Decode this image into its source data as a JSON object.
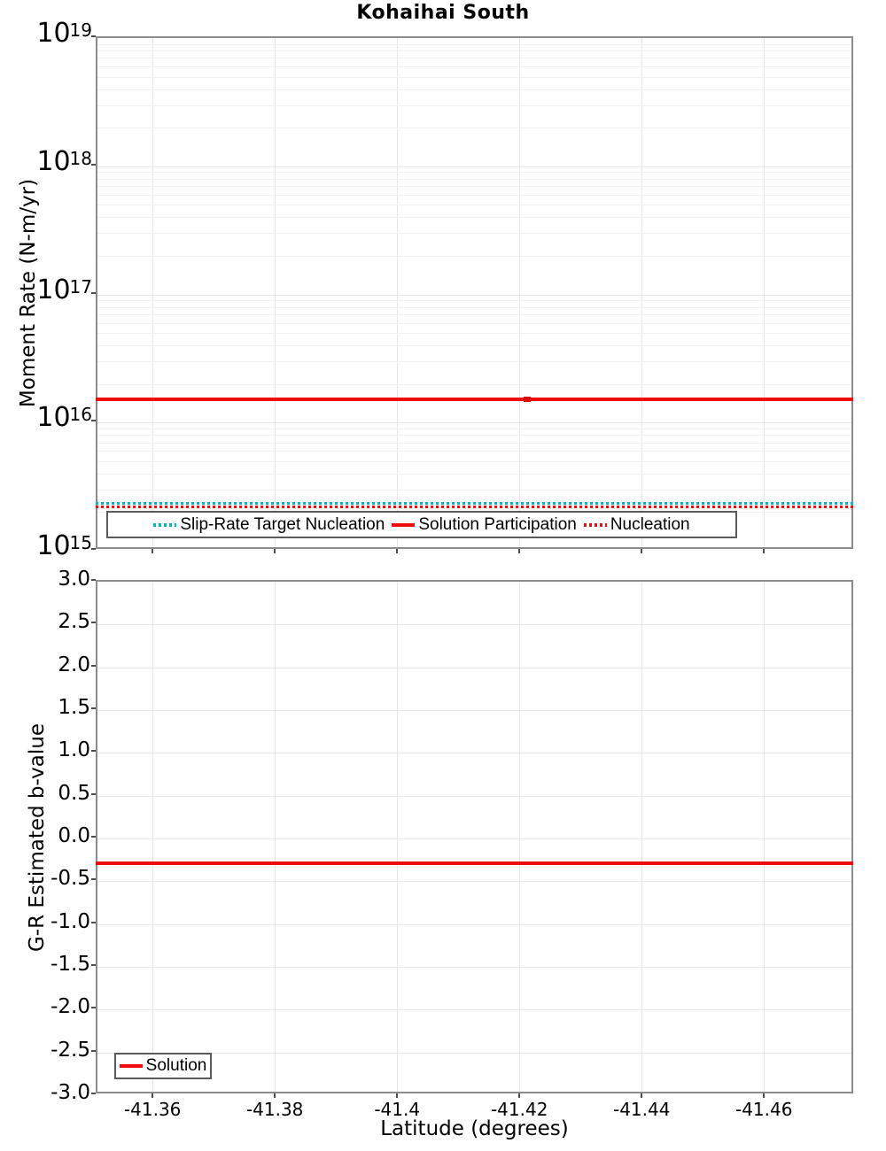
{
  "title": "Kohaihai South",
  "colors": {
    "red": "#F00C0C",
    "red_dark": "#DD0808",
    "teal": "#00B5BC",
    "grid_major": "#E6E6E6",
    "grid_minor": "#F1F1F1",
    "axis_border": "#8C8C8C",
    "legend_border": "#5A5A5A",
    "tick": "#4D4D4D",
    "text": "#000000"
  },
  "x_axis": {
    "label": "Latitude (degrees)",
    "ticks": [
      -41.36,
      -41.38,
      -41.4,
      -41.42,
      -41.44,
      -41.46
    ],
    "tick_labels": [
      "-41.36",
      "-41.38",
      "-41.4",
      "-41.42",
      "-41.44",
      "-41.46"
    ],
    "range": [
      -41.3507,
      -41.4746
    ],
    "direction": "decreasing"
  },
  "chart_data": [
    {
      "type": "line",
      "panel": "top",
      "title": "Kohaihai South",
      "ylabel": "Moment Rate (N-m/yr)",
      "xlabel": "Latitude (degrees)",
      "y_scale": "log",
      "ylim": [
        1000000000000000.0,
        1e+19
      ],
      "y_tick_exponents": [
        19,
        18,
        17,
        16,
        15
      ],
      "grid": "on",
      "legend_position": "bottom-left-inside",
      "series": [
        {
          "name": "Slip-Rate Target Nucleation",
          "style": "dotted",
          "color_key": "teal",
          "value": 2300000000000000.0
        },
        {
          "name": "Solution Participation",
          "style": "solid",
          "color_key": "red",
          "value": 1.48e+16,
          "marker_x": -41.4213
        },
        {
          "name": "Nucleation",
          "style": "dotted",
          "color_key": "red",
          "value": 2150000000000000.0
        }
      ]
    },
    {
      "type": "line",
      "panel": "bottom",
      "ylabel": "G-R Estimated b-value",
      "xlabel": "Latitude (degrees)",
      "y_scale": "linear",
      "ylim": [
        -3.0,
        3.0
      ],
      "y_ticks": [
        3.0,
        2.5,
        2.0,
        1.5,
        1.0,
        0.5,
        0.0,
        -0.5,
        -1.0,
        -1.5,
        -2.0,
        -2.5,
        -3.0
      ],
      "grid": "on",
      "legend_position": "bottom-left-inside",
      "series": [
        {
          "name": "Solution",
          "style": "solid",
          "color_key": "red",
          "value": -0.31
        }
      ]
    }
  ]
}
